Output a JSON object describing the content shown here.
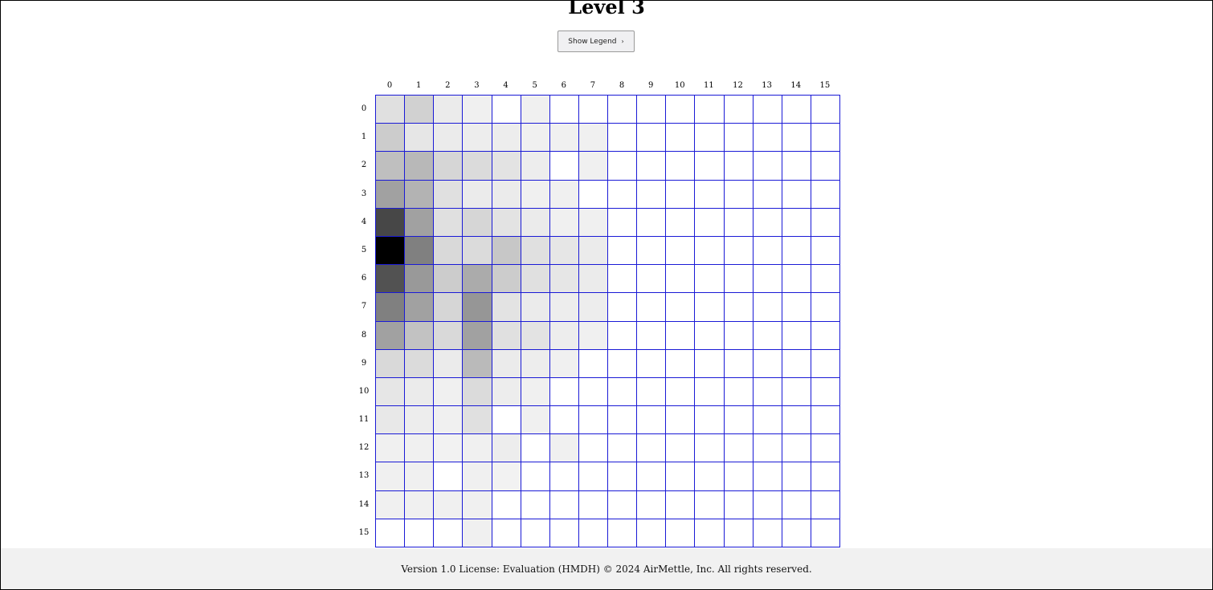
{
  "page": {
    "title": "Level 3",
    "legend_button_label": "Show Legend",
    "legend_button_icon": "chevron-right-icon",
    "footer_text": "Version 1.0 License: Evaluation (HMDH) © 2024 AirMettle, Inc. All rights reserved."
  },
  "grid": {
    "col_labels": [
      "0",
      "1",
      "2",
      "3",
      "4",
      "5",
      "6",
      "7",
      "8",
      "9",
      "10",
      "11",
      "12",
      "13",
      "14",
      "15"
    ],
    "row_labels": [
      "0",
      "1",
      "2",
      "3",
      "4",
      "5",
      "6",
      "7",
      "8",
      "9",
      "10",
      "11",
      "12",
      "13",
      "14",
      "15"
    ],
    "line_color": "#1a1ad6",
    "intensity": [
      [
        0.12,
        0.18,
        0.08,
        0.06,
        0,
        0.06,
        0,
        0,
        0,
        0,
        0,
        0,
        0,
        0,
        0,
        0
      ],
      [
        0.2,
        0.1,
        0.08,
        0.07,
        0.07,
        0.06,
        0.06,
        0.06,
        0,
        0,
        0,
        0,
        0,
        0,
        0,
        0
      ],
      [
        0.25,
        0.28,
        0.16,
        0.14,
        0.11,
        0.07,
        0,
        0.06,
        0,
        0,
        0,
        0,
        0,
        0,
        0,
        0
      ],
      [
        0.37,
        0.3,
        0.12,
        0.08,
        0.08,
        0.06,
        0.06,
        0,
        0,
        0,
        0,
        0,
        0,
        0,
        0,
        0
      ],
      [
        0.72,
        0.37,
        0.12,
        0.16,
        0.11,
        0.08,
        0.06,
        0.06,
        0,
        0,
        0,
        0,
        0,
        0,
        0,
        0
      ],
      [
        1.0,
        0.5,
        0.15,
        0.14,
        0.22,
        0.12,
        0.1,
        0.08,
        0,
        0,
        0,
        0,
        0,
        0,
        0,
        0
      ],
      [
        0.68,
        0.4,
        0.2,
        0.33,
        0.2,
        0.12,
        0.1,
        0.08,
        0,
        0,
        0,
        0,
        0,
        0,
        0,
        0
      ],
      [
        0.5,
        0.37,
        0.16,
        0.41,
        0.11,
        0.08,
        0.07,
        0.07,
        0,
        0,
        0,
        0,
        0,
        0,
        0,
        0
      ],
      [
        0.37,
        0.24,
        0.15,
        0.37,
        0.12,
        0.11,
        0.07,
        0.06,
        0,
        0,
        0,
        0,
        0,
        0,
        0,
        0
      ],
      [
        0.15,
        0.14,
        0.08,
        0.27,
        0.08,
        0.07,
        0.06,
        0,
        0,
        0,
        0,
        0,
        0,
        0,
        0,
        0
      ],
      [
        0.1,
        0.08,
        0.06,
        0.14,
        0.07,
        0.06,
        0,
        0,
        0,
        0,
        0,
        0,
        0,
        0,
        0,
        0
      ],
      [
        0.09,
        0.07,
        0.06,
        0.12,
        0,
        0.06,
        0,
        0,
        0,
        0,
        0,
        0,
        0,
        0,
        0,
        0
      ],
      [
        0.06,
        0.06,
        0.05,
        0.06,
        0.07,
        0,
        0.06,
        0,
        0,
        0,
        0,
        0,
        0,
        0,
        0,
        0
      ],
      [
        0.06,
        0.06,
        0,
        0.06,
        0.05,
        0,
        0,
        0,
        0,
        0,
        0,
        0,
        0,
        0,
        0,
        0
      ],
      [
        0.06,
        0.06,
        0.06,
        0.06,
        0,
        0,
        0,
        0,
        0,
        0,
        0,
        0,
        0,
        0,
        0,
        0
      ],
      [
        0,
        0,
        0,
        0.06,
        0,
        0,
        0,
        0,
        0,
        0,
        0,
        0,
        0,
        0,
        0,
        0
      ]
    ]
  }
}
